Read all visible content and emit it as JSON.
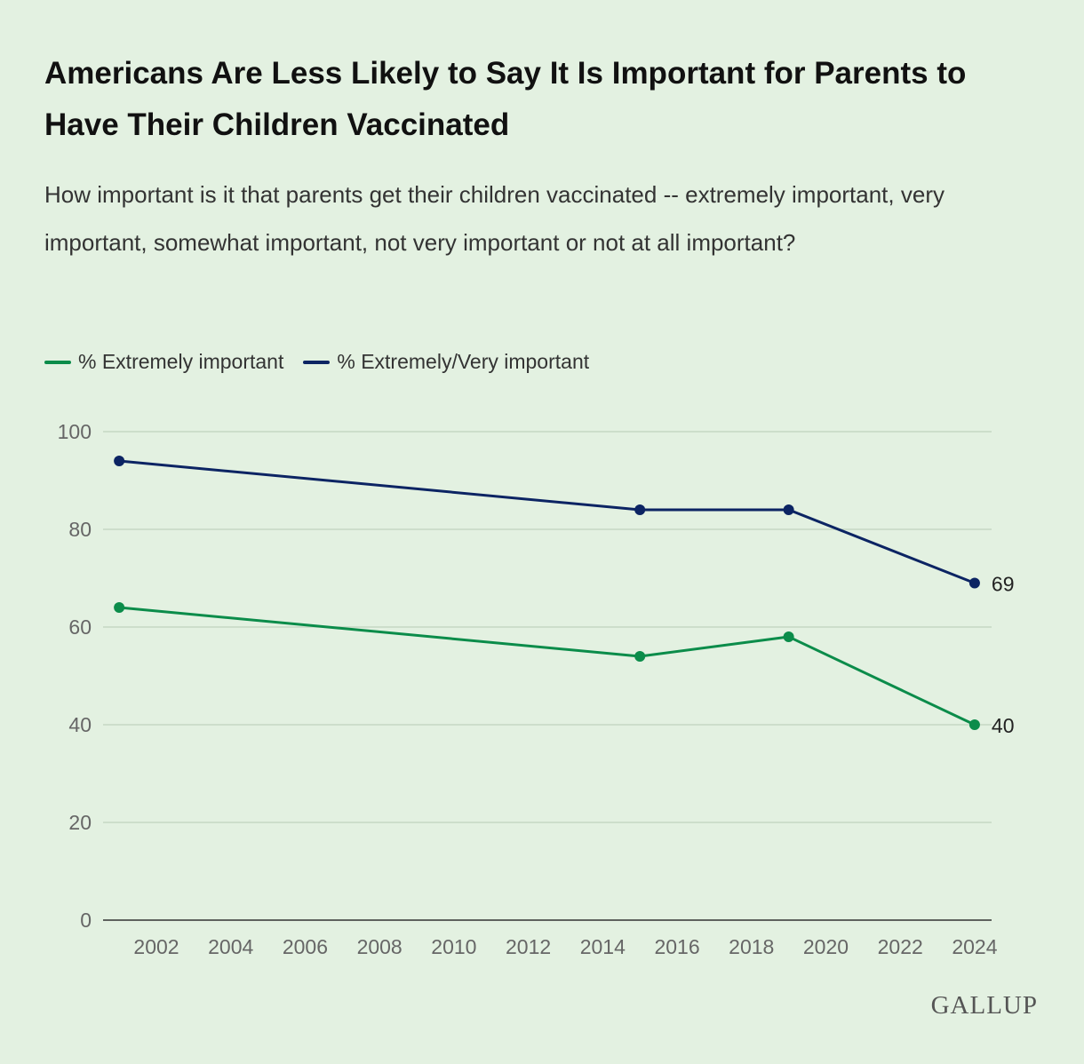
{
  "title": "Americans Are Less Likely to Say It Is Important for Parents to Have Their Children Vaccinated",
  "subtitle": "How important is it that parents get their children vaccinated -- extremely important, very important, somewhat important, not very important or not at all important?",
  "logo": "GALLUP",
  "chart_data": {
    "type": "line",
    "title": "Americans Are Less Likely to Say It Is Important for Parents to Have Their Children Vaccinated",
    "xlabel": "",
    "ylabel": "",
    "xlim": [
      2001,
      2024
    ],
    "ylim": [
      0,
      100
    ],
    "yticks": [
      0,
      20,
      40,
      60,
      80,
      100
    ],
    "xticks": [
      2002,
      2004,
      2006,
      2008,
      2010,
      2012,
      2014,
      2016,
      2018,
      2020,
      2022,
      2024
    ],
    "grid": "horizontal",
    "legend": "top-left",
    "series": [
      {
        "name": "% Extremely important",
        "color": "#0b8c4a",
        "x": [
          2001,
          2015,
          2019,
          2024
        ],
        "values": [
          64,
          54,
          58,
          40
        ],
        "end_label": "40"
      },
      {
        "name": "% Extremely/Very important",
        "color": "#0c2463",
        "x": [
          2001,
          2015,
          2019,
          2024
        ],
        "values": [
          94,
          84,
          84,
          69
        ],
        "end_label": "69"
      }
    ]
  }
}
